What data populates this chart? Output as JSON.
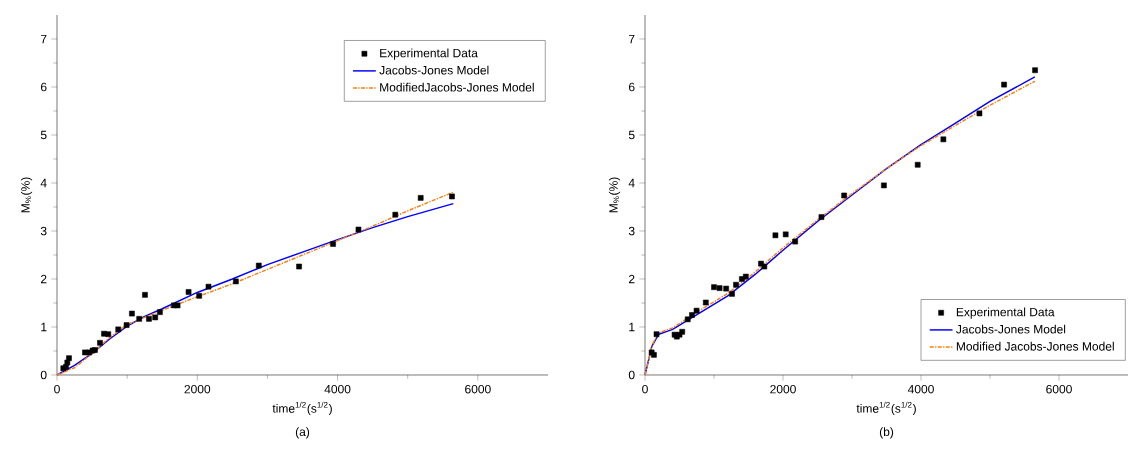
{
  "chart_data": [
    {
      "type": "scatter",
      "xlabel": "time$^{1/2}$(s$^{1/2}$)",
      "ylabel": "M$_{%}$(%)",
      "annotations": [
        "(a)"
      ],
      "xlim": [
        0,
        7000
      ],
      "ylim": [
        0,
        7.5
      ],
      "xticks": [
        0,
        2000,
        4000,
        6000
      ],
      "yticks": [
        0,
        1,
        2,
        3,
        4,
        5,
        6,
        7
      ],
      "legend": "top right",
      "series": [
        {
          "name": "Experimental Data",
          "marker": "square",
          "color": "#000000",
          "x": [
            90,
            128,
            147,
            171,
            399,
            460,
            508,
            541,
            613,
            670,
            731,
            873,
            992,
            1068,
            1172,
            1254,
            1311,
            1400,
            1467,
            1667,
            1719,
            1876,
            2027,
            2160,
            2550,
            2877,
            3451,
            3936,
            4298,
            4823,
            5185,
            5631
          ],
          "values": [
            0.14,
            0.17,
            0.26,
            0.35,
            0.47,
            0.47,
            0.51,
            0.52,
            0.67,
            0.86,
            0.85,
            0.95,
            1.04,
            1.28,
            1.17,
            1.67,
            1.17,
            1.2,
            1.31,
            1.45,
            1.45,
            1.73,
            1.65,
            1.84,
            1.95,
            2.28,
            2.26,
            2.73,
            3.03,
            3.34,
            3.69,
            3.72
          ]
        },
        {
          "name": "Jacobs-Jones Model",
          "type": "line",
          "line_style": "solid",
          "color": "#0000ff",
          "x": [
            0,
            250,
            500,
            750,
            1000,
            1250,
            1500,
            2000,
            2500,
            3000,
            3500,
            4000,
            4500,
            5000,
            5650
          ],
          "values": [
            0,
            0.2,
            0.45,
            0.75,
            1.02,
            1.22,
            1.38,
            1.72,
            2.0,
            2.3,
            2.56,
            2.82,
            3.07,
            3.3,
            3.57
          ]
        },
        {
          "name": "ModifiedJacobs-Jones Model",
          "type": "line",
          "line_style": "dashdot",
          "color": "#ff7f0e",
          "x": [
            0,
            250,
            500,
            750,
            1000,
            1500,
            2000,
            2500,
            3000,
            3500,
            4000,
            4500,
            5000,
            5650
          ],
          "values": [
            0,
            0.15,
            0.45,
            0.78,
            1.05,
            1.35,
            1.63,
            1.9,
            2.2,
            2.5,
            2.8,
            3.1,
            3.42,
            3.81
          ]
        }
      ]
    },
    {
      "type": "scatter",
      "xlabel": "time$^{1/2}$(s$^{1/2}$)",
      "ylabel": "M$_{%}$(%)",
      "annotations": [
        "(b)"
      ],
      "xlim": [
        0,
        7000
      ],
      "ylim": [
        0,
        7.5
      ],
      "xticks": [
        0,
        2000,
        4000,
        6000
      ],
      "yticks": [
        0,
        1,
        2,
        3,
        4,
        5,
        6,
        7
      ],
      "legend": "bottom right",
      "series": [
        {
          "name": "Experimental Data",
          "marker": "square",
          "color": "#000000",
          "x": [
            96,
            129,
            167,
            429,
            461,
            500,
            539,
            619,
            681,
            747,
            881,
            1000,
            1081,
            1176,
            1261,
            1319,
            1404,
            1461,
            1681,
            1729,
            1890,
            2039,
            2176,
            2557,
            2886,
            3462,
            3952,
            4324,
            4847,
            5204,
            5653
          ],
          "values": [
            0.47,
            0.42,
            0.85,
            0.84,
            0.8,
            0.84,
            0.9,
            1.16,
            1.25,
            1.34,
            1.51,
            1.83,
            1.81,
            1.8,
            1.69,
            1.88,
            2.0,
            2.05,
            2.32,
            2.26,
            2.91,
            2.93,
            2.78,
            3.29,
            3.74,
            3.95,
            4.38,
            4.91,
            5.45,
            6.05,
            6.35
          ]
        },
        {
          "name": "Jacobs-Jones Model",
          "type": "line",
          "line_style": "solid",
          "color": "#0000ff",
          "x": [
            0,
            100,
            200,
            400,
            800,
            1200,
            1600,
            2000,
            2500,
            3000,
            3500,
            4000,
            4500,
            5000,
            5650
          ],
          "values": [
            0,
            0.6,
            0.85,
            0.95,
            1.3,
            1.65,
            2.1,
            2.6,
            3.2,
            3.75,
            4.3,
            4.8,
            5.25,
            5.7,
            6.21
          ]
        },
        {
          "name": "Modified Jacobs-Jones Model",
          "type": "line",
          "line_style": "dashdot",
          "color": "#ff7f0e",
          "x": [
            0,
            100,
            200,
            400,
            800,
            1200,
            1600,
            2000,
            2500,
            3000,
            3500,
            4000,
            4500,
            5000,
            5650
          ],
          "values": [
            0,
            0.62,
            0.88,
            0.98,
            1.35,
            1.7,
            2.15,
            2.65,
            3.23,
            3.78,
            4.3,
            4.78,
            5.2,
            5.62,
            6.12
          ]
        }
      ]
    }
  ]
}
